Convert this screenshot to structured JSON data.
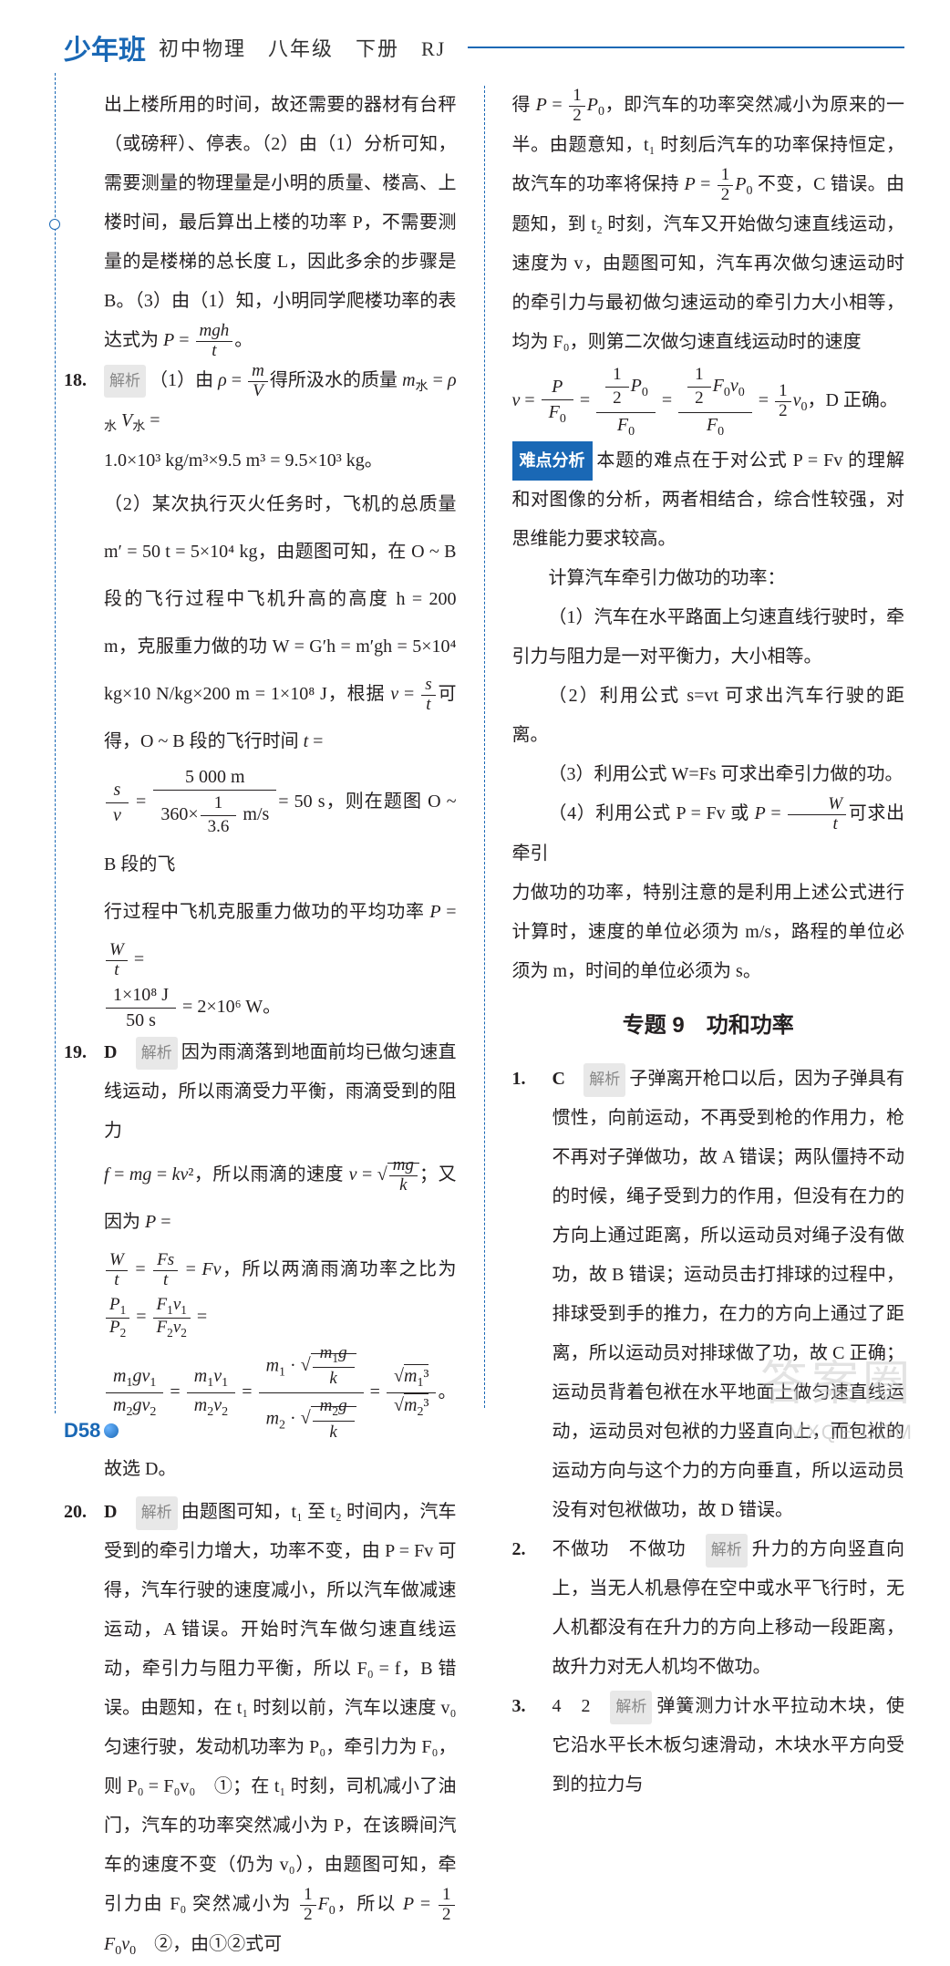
{
  "header": {
    "logo": "少年班",
    "text": "初中物理　八年级　下册　RJ"
  },
  "left": {
    "p17_cont": "出上楼所用的时间，故还需要的器材有台秤（或磅秤）、停表。（2）由（1）分析可知，需要测量的物理量是小明的质量、楼高、上楼时间，最后算出上楼的功率 P，不需要测量的是楼梯的总长度 L，因此多余的步骤是 B。（3）由（1）知，小明同学爬楼功率的表达式为 ",
    "p18_num": "18.",
    "p18_badge": "解析",
    "p18_a": "（1）由 ",
    "p18_b": "得所汲水的质量 ",
    "p18_c": "1.0×10³ kg/m³×9.5 m³ = 9.5×10³ kg。",
    "p18_d": "（2）某次执行灭火任务时，飞机的总质量 m′ = 50 t = 5×10⁴ kg，由题图可知，在 O ~ B 段的飞行过程中飞机升高的高度 h = 200 m，克服重力做的功 W = G′h = m′gh = 5×10⁴ kg×10 N/kg×200 m = 1×10⁸ J，根据 ",
    "p18_e": "可得，O ~ B 段的飞行时间 ",
    "p18_f": "= 50 s，则在题图 O ~ B 段的飞",
    "p18_g": "行过程中飞机克服重力做功的平均功率 ",
    "p18_h": " = 2×10⁶ W。",
    "p19_num": "19.",
    "p19_ans": "D",
    "p19_badge": "解析",
    "p19_a": "因为雨滴落到地面前均已做匀速直线运动，所以雨滴受力平衡，雨滴受到的阻力 ",
    "p19_b": "，所以雨滴的速度 ",
    "p19_c": "；又因为 ",
    "p19_d": "，所以两滴雨滴功率之比为",
    "p19_e": "。故选 D。",
    "p20_num": "20.",
    "p20_ans": "D",
    "p20_badge": "解析",
    "p20_a": "由题图可知，t₁ 至 t₂ 时间内，汽车受到的牵引力增大，功率不变，由 P = Fv 可得，汽车行驶的速度减小，所以汽车做减速运动，A 错误。开始时汽车做匀速直线运动，牵引力与阻力平衡，所以 F₀ = f，B 错误。由题知，在 t₁ 时刻以前，汽车以速度 v₀ 匀速行驶，发动机功率为 P₀，牵引力为 F₀，则 P₀ = F₀v₀　①；在 t₁ 时刻，司机减小了油门，汽车的功率突然减小为 P，在该瞬间汽车的速度不变（仍为 v₀），由题图可知，牵引力由 F₀ 突然减小为 ",
    "p20_b": "，所以 ",
    "p20_c": "　②，由①②式可"
  },
  "right": {
    "p20_d": "得 ",
    "p20_e": "，即汽车的功率突然减小为原来的一半。由题意知，t₁ 时刻后汽车的功率保持恒定，故汽车的功率将保持 ",
    "p20_f": " 不变，C 错误。由题知，到 t₂ 时刻，汽车又开始做匀速直线运动，速度为 v，由题图可知，汽车再次做匀速运动时的牵引力与最初做匀速运动的牵引力大小相等，均为 F₀，则第二次做匀速直线运动时的速度 ",
    "p20_g": "，D 正确。",
    "diff_badge": "难点分析",
    "diff_text": "本题的难点在于对公式 P = Fv 的理解和对图像的分析，两者相结合，综合性较强，对思维能力要求较高。",
    "method_intro": "计算汽车牵引力做功的功率：",
    "method1": "（1）汽车在水平路面上匀速直线行驶时，牵引力与阻力是一对平衡力，大小相等。",
    "method2": "（2）利用公式 s=vt 可求出汽车行驶的距离。",
    "method3": "（3）利用公式 W=Fs 可求出牵引力做的功。",
    "method4a": "（4）利用公式 P = Fv 或 ",
    "method4b": "可求出牵引",
    "method_end": "力做功的功率，特别注意的是利用上述公式进行计算时，速度的单位必须为 m/s，路程的单位必须为 m，时间的单位必须为 s。",
    "section_title": "专题 9　功和功率",
    "q1_num": "1.",
    "q1_ans": "C",
    "q1_badge": "解析",
    "q1_text": "子弹离开枪口以后，因为子弹具有惯性，向前运动，不再受到枪的作用力，枪不再对子弹做功，故 A 错误；两队僵持不动的时候，绳子受到力的作用，但没有在力的方向上通过距离，所以运动员对绳子没有做功，故 B 错误；运动员击打排球的过程中，排球受到手的推力，在力的方向上通过了距离，所以运动员对排球做了功，故 C 正确；运动员背着包袱在水平地面上做匀速直线运动，运动员对包袱的力竖直向上，而包袱的运动方向与这个力的方向垂直，所以运动员没有对包袱做功，故 D 错误。",
    "q2_num": "2.",
    "q2_ans": "不做功　不做功",
    "q2_badge": "解析",
    "q2_text": "升力的方向竖直向上，当无人机悬停在空中或水平飞行时，无人机都没有在升力的方向上移动一段距离，故升力对无人机均不做功。",
    "q3_num": "3.",
    "q3_ans": "4　2",
    "q3_badge": "解析",
    "q3_text": "弹簧测力计水平拉动木块，使它沿水平长木板匀速滑动，木块水平方向受到的拉力与"
  },
  "page_number": "D58",
  "watermark": "答案圈",
  "watermark_url": "MXQE.COM"
}
